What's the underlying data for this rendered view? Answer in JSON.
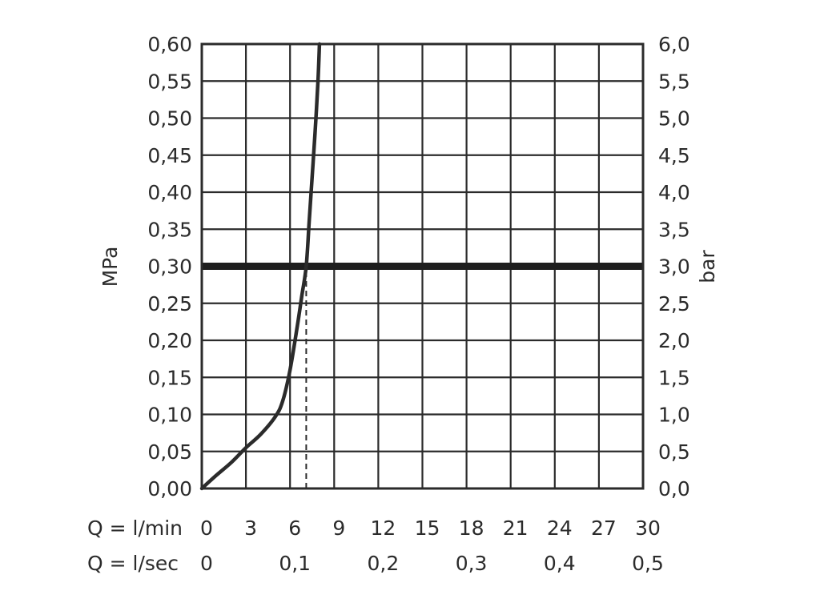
{
  "chart_data": {
    "type": "line",
    "title": "",
    "ylabel_left": "MPa",
    "ylabel_right": "bar",
    "ylim": [
      0,
      0.6
    ],
    "xlim": [
      0,
      30
    ],
    "y_ticks_left": [
      "0,00",
      "0,05",
      "0,10",
      "0,15",
      "0,20",
      "0,25",
      "0,30",
      "0,35",
      "0,40",
      "0,45",
      "0,50",
      "0,55",
      "0,60"
    ],
    "y_ticks_right": [
      "0,0",
      "0,5",
      "1,0",
      "1,5",
      "2,0",
      "2,5",
      "3,0",
      "3,5",
      "4,0",
      "4,5",
      "5,0",
      "5,5",
      "6,0"
    ],
    "x_rows": [
      {
        "label": "Q = l/min",
        "ticks": [
          {
            "x": 0,
            "text": "0"
          },
          {
            "x": 3,
            "text": "3"
          },
          {
            "x": 6,
            "text": "6"
          },
          {
            "x": 9,
            "text": "9"
          },
          {
            "x": 12,
            "text": "12"
          },
          {
            "x": 15,
            "text": "15"
          },
          {
            "x": 18,
            "text": "18"
          },
          {
            "x": 21,
            "text": "21"
          },
          {
            "x": 24,
            "text": "24"
          },
          {
            "x": 27,
            "text": "27"
          },
          {
            "x": 30,
            "text": "30"
          }
        ]
      },
      {
        "label": "Q = l/sec",
        "ticks": [
          {
            "x": 0,
            "text": "0"
          },
          {
            "x": 6,
            "text": "0,1"
          },
          {
            "x": 12,
            "text": "0,2"
          },
          {
            "x": 18,
            "text": "0,3"
          },
          {
            "x": 24,
            "text": "0,4"
          },
          {
            "x": 30,
            "text": "0,5"
          }
        ]
      }
    ],
    "series": [
      {
        "x": [
          0,
          1,
          2,
          3,
          4,
          5,
          5.5,
          6,
          6.5,
          6.8,
          7.1,
          7.3,
          7.5,
          7.7,
          7.9,
          8.0
        ],
        "y": [
          0,
          0.018,
          0.035,
          0.055,
          0.073,
          0.097,
          0.118,
          0.16,
          0.22,
          0.26,
          0.3,
          0.36,
          0.42,
          0.48,
          0.55,
          0.6
        ]
      }
    ],
    "reference_line": {
      "y": 0.3
    },
    "marker_line": {
      "x": 7.1,
      "from_y": 0,
      "to_y": 0.3,
      "style": "dashed"
    },
    "grid": true
  }
}
